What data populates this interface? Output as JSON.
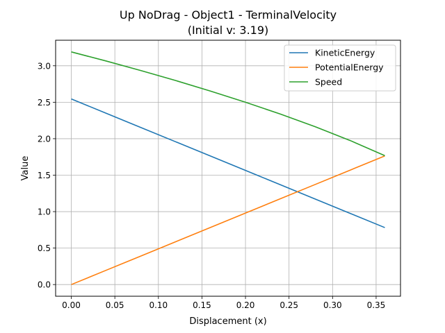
{
  "chart_data": {
    "type": "line",
    "title": "Up NoDrag - Object1 - TerminalVelocity",
    "subtitle": "(Initial v: 3.19)",
    "xlabel": "Displacement (x)",
    "ylabel": "Value",
    "xlim": [
      -0.018,
      0.378
    ],
    "ylim": [
      -0.16,
      3.35
    ],
    "xticks": [
      0.0,
      0.05,
      0.1,
      0.15,
      0.2,
      0.25,
      0.3,
      0.35
    ],
    "xtick_labels": [
      "0.00",
      "0.05",
      "0.10",
      "0.15",
      "0.20",
      "0.25",
      "0.30",
      "0.35"
    ],
    "yticks": [
      0.0,
      0.5,
      1.0,
      1.5,
      2.0,
      2.5,
      3.0
    ],
    "ytick_labels": [
      "0.0",
      "0.5",
      "1.0",
      "1.5",
      "2.0",
      "2.5",
      "3.0"
    ],
    "grid": true,
    "legend_position": "top-right",
    "series": [
      {
        "name": "KineticEnergy",
        "color": "#1f77b4",
        "x": [
          0.0,
          0.04,
          0.08,
          0.12,
          0.16,
          0.2,
          0.24,
          0.28,
          0.32,
          0.36
        ],
        "values": [
          2.545,
          2.349,
          2.153,
          1.957,
          1.761,
          1.565,
          1.369,
          1.173,
          0.977,
          0.781
        ]
      },
      {
        "name": "PotentialEnergy",
        "color": "#ff7f0e",
        "x": [
          0.0,
          0.04,
          0.08,
          0.12,
          0.16,
          0.2,
          0.24,
          0.28,
          0.32,
          0.36
        ],
        "values": [
          0.0,
          0.196,
          0.392,
          0.588,
          0.784,
          0.98,
          1.176,
          1.372,
          1.568,
          1.764
        ]
      },
      {
        "name": "Speed",
        "color": "#2ca02c",
        "x": [
          0.0,
          0.04,
          0.08,
          0.12,
          0.16,
          0.2,
          0.24,
          0.28,
          0.32,
          0.36
        ],
        "values": [
          3.19,
          3.065,
          2.934,
          2.797,
          2.652,
          2.5,
          2.338,
          2.165,
          1.976,
          1.767
        ]
      }
    ]
  }
}
